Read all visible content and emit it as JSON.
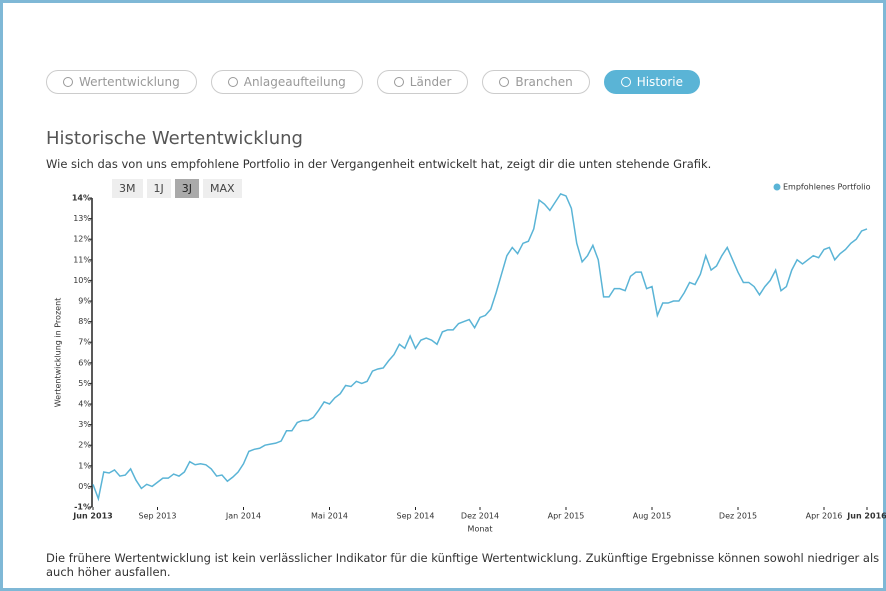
{
  "tabs": [
    {
      "label": "Wertentwicklung"
    },
    {
      "label": "Anlageaufteilung"
    },
    {
      "label": "Länder"
    },
    {
      "label": "Branchen"
    },
    {
      "label": "Historie",
      "active": true
    }
  ],
  "heading": "Historische Wertentwicklung",
  "description": "Wie sich das von uns empfohlene Portfolio in der Vergangenheit entwickelt hat, zeigt dir die unten stehende Grafik.",
  "ranges": [
    {
      "label": "3M"
    },
    {
      "label": "1J"
    },
    {
      "label": "3J",
      "active": true
    },
    {
      "label": "MAX"
    }
  ],
  "chart_data": {
    "type": "line",
    "x_label": "Monat",
    "y_label": "Wertentwicklung in Prozent",
    "legend": "top-right",
    "xlim": [
      0,
      36
    ],
    "ylim": [
      -1,
      14
    ],
    "xticks": [
      {
        "value": 0,
        "label": "Jun 2013"
      },
      {
        "value": 3,
        "label": "Sep 2013"
      },
      {
        "value": 7,
        "label": "Jan 2014"
      },
      {
        "value": 11,
        "label": "Mai 2014"
      },
      {
        "value": 15,
        "label": "Sep 2014"
      },
      {
        "value": 18,
        "label": "Dez 2014"
      },
      {
        "value": 22,
        "label": "Apr 2015"
      },
      {
        "value": 26,
        "label": "Aug 2015"
      },
      {
        "value": 30,
        "label": "Dez 2015"
      },
      {
        "value": 34,
        "label": "Apr 2016"
      },
      {
        "value": 36,
        "label": "Jun 2016"
      }
    ],
    "yticks": [
      {
        "value": -1,
        "label": "-1%"
      },
      {
        "value": 0,
        "label": "0%"
      },
      {
        "value": 1,
        "label": "1%"
      },
      {
        "value": 2,
        "label": "2%"
      },
      {
        "value": 3,
        "label": "3%"
      },
      {
        "value": 4,
        "label": "4%"
      },
      {
        "value": 5,
        "label": "5%"
      },
      {
        "value": 6,
        "label": "6%"
      },
      {
        "value": 7,
        "label": "7%"
      },
      {
        "value": 8,
        "label": "8%"
      },
      {
        "value": 9,
        "label": "9%"
      },
      {
        "value": 10,
        "label": "10%"
      },
      {
        "value": 11,
        "label": "11%"
      },
      {
        "value": 12,
        "label": "12%"
      },
      {
        "value": 13,
        "label": "13%"
      },
      {
        "value": 14,
        "label": "14%"
      }
    ],
    "x": [
      0,
      0.25,
      0.5,
      0.75,
      1,
      1.25,
      1.5,
      1.75,
      2,
      2.25,
      2.5,
      2.75,
      3,
      3.25,
      3.5,
      3.75,
      4,
      4.25,
      4.5,
      4.75,
      5,
      5.25,
      5.5,
      5.75,
      6,
      6.25,
      6.5,
      6.75,
      7,
      7.25,
      7.5,
      7.75,
      8,
      8.25,
      8.5,
      8.75,
      9,
      9.25,
      9.5,
      9.75,
      10,
      10.25,
      10.5,
      10.75,
      11,
      11.25,
      11.5,
      11.75,
      12,
      12.25,
      12.5,
      12.75,
      13,
      13.25,
      13.5,
      13.75,
      14,
      14.25,
      14.5,
      14.75,
      15,
      15.25,
      15.5,
      15.75,
      16,
      16.25,
      16.5,
      16.75,
      17,
      17.25,
      17.5,
      17.75,
      18,
      18.25,
      18.5,
      18.75,
      19,
      19.25,
      19.5,
      19.75,
      20,
      20.25,
      20.5,
      20.75,
      21,
      21.25,
      21.5,
      21.75,
      22,
      22.25,
      22.5,
      22.75,
      23,
      23.25,
      23.5,
      23.75,
      24,
      24.25,
      24.5,
      24.75,
      25,
      25.25,
      25.5,
      25.75,
      26,
      26.25,
      26.5,
      26.75,
      27,
      27.25,
      27.5,
      27.75,
      28,
      28.25,
      28.5,
      28.75,
      29,
      29.25,
      29.5,
      29.75,
      30,
      30.25,
      30.5,
      30.75,
      31,
      31.25,
      31.5,
      31.75,
      32,
      32.25,
      32.5,
      32.75,
      33,
      33.25,
      33.5,
      33.75,
      34,
      34.25,
      34.5,
      34.75,
      35,
      35.25,
      35.5,
      35.75,
      36
    ],
    "series": [
      {
        "name": "Empfohlenes Portfolio",
        "color": "#5ab4d6",
        "values": [
          0.1,
          -0.6,
          0.7,
          0.65,
          0.8,
          0.5,
          0.55,
          0.85,
          0.3,
          -0.1,
          0.1,
          0.0,
          0.2,
          0.4,
          0.4,
          0.6,
          0.5,
          0.7,
          1.2,
          1.05,
          1.1,
          1.05,
          0.85,
          0.5,
          0.55,
          0.25,
          0.45,
          0.7,
          1.1,
          1.7,
          1.8,
          1.85,
          2.0,
          2.05,
          2.1,
          2.2,
          2.7,
          2.7,
          3.1,
          3.2,
          3.2,
          3.35,
          3.7,
          4.1,
          4.0,
          4.3,
          4.5,
          4.9,
          4.85,
          5.1,
          5.0,
          5.1,
          5.6,
          5.7,
          5.75,
          6.1,
          6.4,
          6.9,
          6.7,
          7.3,
          6.7,
          7.1,
          7.2,
          7.1,
          6.9,
          7.5,
          7.6,
          7.6,
          7.9,
          8.0,
          8.1,
          7.7,
          8.2,
          8.3,
          8.6,
          9.4,
          10.3,
          11.2,
          11.6,
          11.3,
          11.8,
          11.9,
          12.5,
          13.9,
          13.7,
          13.4,
          13.8,
          14.2,
          14.1,
          13.5,
          11.8,
          10.9,
          11.2,
          11.7,
          11.0,
          9.2,
          9.2,
          9.6,
          9.6,
          9.5,
          10.2,
          10.4,
          10.4,
          9.6,
          9.7,
          8.3,
          8.9,
          8.9,
          9.0,
          9.0,
          9.4,
          9.9,
          9.8,
          10.3,
          11.2,
          10.5,
          10.7,
          11.2,
          11.6,
          11.0,
          10.4,
          9.9,
          9.9,
          9.7,
          9.3,
          9.7,
          10.0,
          10.5,
          9.5,
          9.7,
          10.5,
          11.0,
          10.8,
          11.0,
          11.2,
          11.1,
          11.5,
          11.6,
          11.0,
          11.3,
          11.5,
          11.8,
          12.0,
          12.4,
          12.5
        ]
      }
    ]
  },
  "disclaimer": "Die frühere Wertentwicklung ist kein verlässlicher Indikator für die künftige Wertentwicklung. Zukünftige Ergebnisse können sowohl niedriger als auch höher ausfallen."
}
